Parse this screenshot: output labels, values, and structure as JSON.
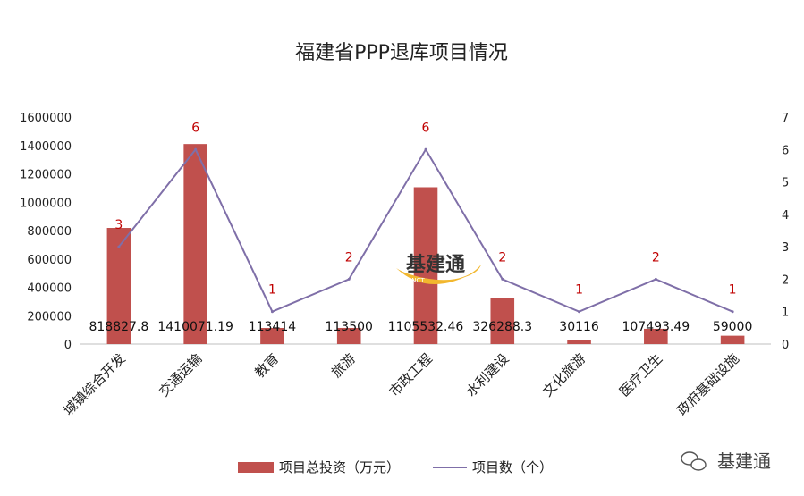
{
  "chart_data": {
    "type": "bar",
    "title": "福建省PPP退库项目情况",
    "categories": [
      "城镇综合开发",
      "交通运输",
      "教育",
      "旅游",
      "市政工程",
      "水利建设",
      "文化旅游",
      "医疗卫生",
      "政府基础设施"
    ],
    "series": [
      {
        "name": "项目总投资（万元）",
        "type": "bar",
        "axis": "left",
        "color": "#c0504d",
        "values": [
          818827.8,
          1410071.19,
          113414,
          113500,
          1105532.46,
          326288.3,
          30116,
          107493.49,
          59000
        ],
        "labels": [
          "818827.8",
          "1410071.19",
          "113414",
          "113500",
          "1105532.46",
          "326288.3",
          "30116",
          "107493.49",
          "59000"
        ]
      },
      {
        "name": "项目数（个）",
        "type": "line",
        "axis": "right",
        "color": "#7f6fa8",
        "values": [
          3,
          6,
          1,
          2,
          6,
          2,
          1,
          2,
          1
        ],
        "labels": [
          "3",
          "6",
          "1",
          "2",
          "6",
          "2",
          "1",
          "2",
          "1"
        ]
      }
    ],
    "y_left": {
      "range": [
        0,
        1600000
      ],
      "ticks": [
        "0",
        "200000",
        "400000",
        "600000",
        "800000",
        "1000000",
        "1200000",
        "1400000",
        "1600000"
      ]
    },
    "y_right": {
      "range": [
        0,
        7
      ],
      "ticks": [
        "0",
        "1",
        "2",
        "3",
        "4",
        "5",
        "6",
        "7"
      ]
    },
    "legend_position": "bottom",
    "grid": false
  },
  "watermark": {
    "logo_text": "基建通",
    "logo_subtext": "CINCT"
  },
  "footer_brand": {
    "icon": "wechat-icon",
    "text": "基建通"
  }
}
